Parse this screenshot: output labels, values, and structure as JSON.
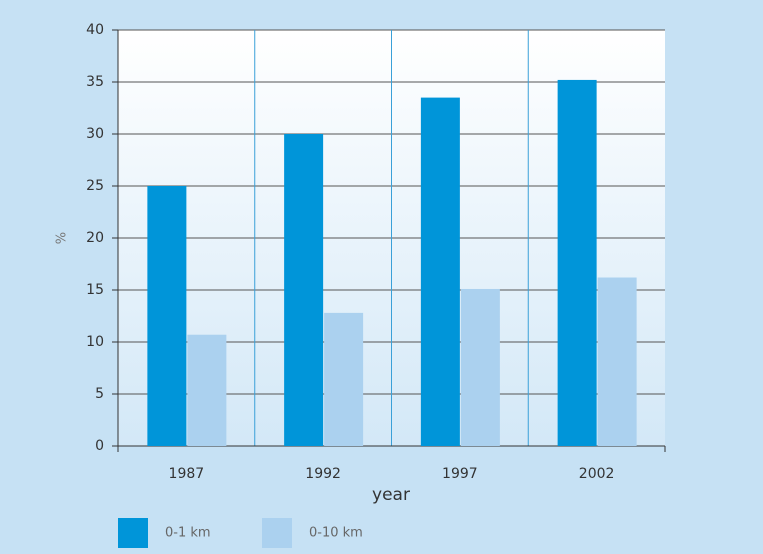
{
  "chart_data": {
    "type": "bar",
    "categories": [
      "1987",
      "1992",
      "1997",
      "2002"
    ],
    "series": [
      {
        "name": "0-1 km",
        "color": "#0095d9",
        "values": [
          25,
          30,
          33.5,
          35.2
        ]
      },
      {
        "name": "0-10 km",
        "color": "#abd1ef",
        "values": [
          10.7,
          12.8,
          15.1,
          16.2
        ]
      }
    ],
    "ylabel": "%",
    "xlabel": "year",
    "ylim": [
      0,
      40
    ],
    "yticks": [
      0,
      5,
      10,
      15,
      20,
      25,
      30,
      35,
      40
    ],
    "grid": true,
    "legend": "bottom-left"
  }
}
